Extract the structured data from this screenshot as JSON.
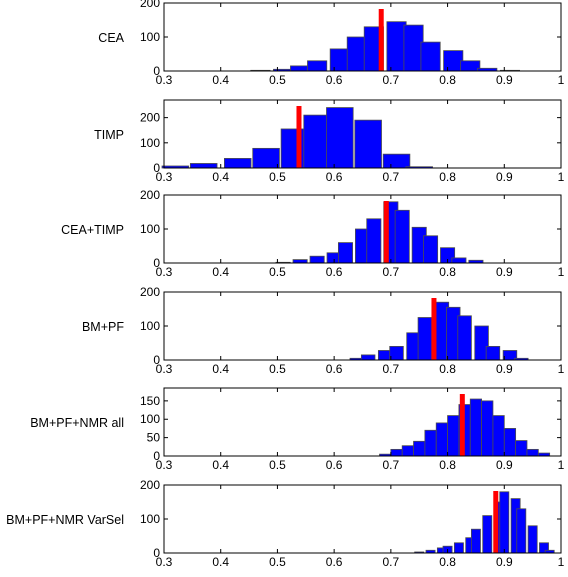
{
  "chart_data": [
    {
      "type": "bar",
      "ylabel": "CEA",
      "xlim": [
        0.3,
        1
      ],
      "ylim": [
        0,
        200
      ],
      "yticks": [
        0,
        100,
        200
      ],
      "xticks": [
        "0.3",
        "0.4",
        "0.5",
        "0.6",
        "0.7",
        "0.8",
        "0.9",
        "1"
      ],
      "bins": [
        {
          "x": 0.47,
          "count": 2
        },
        {
          "x": 0.51,
          "count": 5
        },
        {
          "x": 0.54,
          "count": 15
        },
        {
          "x": 0.57,
          "count": 30
        },
        {
          "x": 0.61,
          "count": 65
        },
        {
          "x": 0.64,
          "count": 100
        },
        {
          "x": 0.67,
          "count": 130
        },
        {
          "x": 0.71,
          "count": 145
        },
        {
          "x": 0.74,
          "count": 135
        },
        {
          "x": 0.77,
          "count": 85
        },
        {
          "x": 0.81,
          "count": 60
        },
        {
          "x": 0.84,
          "count": 30
        },
        {
          "x": 0.87,
          "count": 8
        },
        {
          "x": 0.91,
          "count": 2
        }
      ],
      "marker": 0.683
    },
    {
      "type": "bar",
      "ylabel": "TIMP",
      "xlim": [
        0.3,
        1
      ],
      "ylim": [
        0,
        270
      ],
      "yticks": [
        0,
        100,
        200
      ],
      "xticks": [
        "0.3",
        "0.4",
        "0.5",
        "0.6",
        "0.7",
        "0.8",
        "0.9",
        "1"
      ],
      "bins": [
        {
          "x": 0.32,
          "count": 8
        },
        {
          "x": 0.37,
          "count": 18
        },
        {
          "x": 0.43,
          "count": 38
        },
        {
          "x": 0.48,
          "count": 78
        },
        {
          "x": 0.53,
          "count": 155
        },
        {
          "x": 0.57,
          "count": 210
        },
        {
          "x": 0.61,
          "count": 240
        },
        {
          "x": 0.66,
          "count": 190
        },
        {
          "x": 0.71,
          "count": 55
        },
        {
          "x": 0.75,
          "count": 5
        }
      ],
      "marker": 0.538
    },
    {
      "type": "bar",
      "ylabel": "CEA+TIMP",
      "xlim": [
        0.3,
        1
      ],
      "ylim": [
        0,
        200
      ],
      "yticks": [
        0,
        100,
        200
      ],
      "xticks": [
        "0.3",
        "0.4",
        "0.5",
        "0.6",
        "0.7",
        "0.8",
        "0.9",
        "1"
      ],
      "bins": [
        {
          "x": 0.51,
          "count": 2
        },
        {
          "x": 0.54,
          "count": 10
        },
        {
          "x": 0.57,
          "count": 20
        },
        {
          "x": 0.6,
          "count": 30
        },
        {
          "x": 0.62,
          "count": 60
        },
        {
          "x": 0.65,
          "count": 100
        },
        {
          "x": 0.67,
          "count": 130
        },
        {
          "x": 0.7,
          "count": 180
        },
        {
          "x": 0.72,
          "count": 155
        },
        {
          "x": 0.75,
          "count": 105
        },
        {
          "x": 0.77,
          "count": 80
        },
        {
          "x": 0.8,
          "count": 45
        },
        {
          "x": 0.82,
          "count": 15
        },
        {
          "x": 0.85,
          "count": 8
        }
      ],
      "marker": 0.692
    },
    {
      "type": "bar",
      "ylabel": "BM+PF",
      "xlim": [
        0.3,
        1
      ],
      "ylim": [
        0,
        200
      ],
      "yticks": [
        0,
        100,
        200
      ],
      "xticks": [
        "0.3",
        "0.4",
        "0.5",
        "0.6",
        "0.7",
        "0.8",
        "0.9",
        "1"
      ],
      "bins": [
        {
          "x": 0.64,
          "count": 5
        },
        {
          "x": 0.66,
          "count": 15
        },
        {
          "x": 0.69,
          "count": 28
        },
        {
          "x": 0.71,
          "count": 40
        },
        {
          "x": 0.74,
          "count": 80
        },
        {
          "x": 0.76,
          "count": 125
        },
        {
          "x": 0.79,
          "count": 170
        },
        {
          "x": 0.81,
          "count": 155
        },
        {
          "x": 0.83,
          "count": 130
        },
        {
          "x": 0.86,
          "count": 100
        },
        {
          "x": 0.88,
          "count": 40
        },
        {
          "x": 0.91,
          "count": 28
        },
        {
          "x": 0.93,
          "count": 5
        }
      ],
      "marker": 0.776
    },
    {
      "type": "bar",
      "ylabel": "BM+PF+NMR all",
      "xlim": [
        0.3,
        1
      ],
      "ylim": [
        0,
        185
      ],
      "yticks": [
        0,
        50,
        100,
        150
      ],
      "xticks": [
        "0.3",
        "0.4",
        "0.5",
        "0.6",
        "0.7",
        "0.8",
        "0.9",
        "1"
      ],
      "bins": [
        {
          "x": 0.69,
          "count": 5
        },
        {
          "x": 0.71,
          "count": 18
        },
        {
          "x": 0.73,
          "count": 28
        },
        {
          "x": 0.75,
          "count": 40
        },
        {
          "x": 0.77,
          "count": 70
        },
        {
          "x": 0.79,
          "count": 90
        },
        {
          "x": 0.81,
          "count": 110
        },
        {
          "x": 0.83,
          "count": 140
        },
        {
          "x": 0.85,
          "count": 155
        },
        {
          "x": 0.87,
          "count": 150
        },
        {
          "x": 0.89,
          "count": 110
        },
        {
          "x": 0.91,
          "count": 75
        },
        {
          "x": 0.93,
          "count": 42
        },
        {
          "x": 0.95,
          "count": 18
        },
        {
          "x": 0.97,
          "count": 8
        }
      ],
      "marker": 0.826
    },
    {
      "type": "bar",
      "ylabel": "BM+PF+NMR VarSel",
      "xlim": [
        0.3,
        1
      ],
      "ylim": [
        0,
        200
      ],
      "yticks": [
        0,
        100,
        200
      ],
      "xticks": [
        "0.3",
        "0.4",
        "0.5",
        "0.6",
        "0.7",
        "0.8",
        "0.9",
        "1"
      ],
      "bins": [
        {
          "x": 0.75,
          "count": 3
        },
        {
          "x": 0.77,
          "count": 8
        },
        {
          "x": 0.79,
          "count": 15
        },
        {
          "x": 0.8,
          "count": 20
        },
        {
          "x": 0.82,
          "count": 30
        },
        {
          "x": 0.84,
          "count": 45
        },
        {
          "x": 0.85,
          "count": 70
        },
        {
          "x": 0.87,
          "count": 110
        },
        {
          "x": 0.89,
          "count": 150
        },
        {
          "x": 0.9,
          "count": 180
        },
        {
          "x": 0.92,
          "count": 160
        },
        {
          "x": 0.93,
          "count": 130
        },
        {
          "x": 0.95,
          "count": 80
        },
        {
          "x": 0.97,
          "count": 30
        },
        {
          "x": 0.98,
          "count": 8
        }
      ],
      "marker": 0.885
    }
  ],
  "colors": {
    "bar_fill": "#0000ff",
    "bar_edge": "#4d4d4d",
    "marker": "#ff0000",
    "axis": "#000000"
  }
}
